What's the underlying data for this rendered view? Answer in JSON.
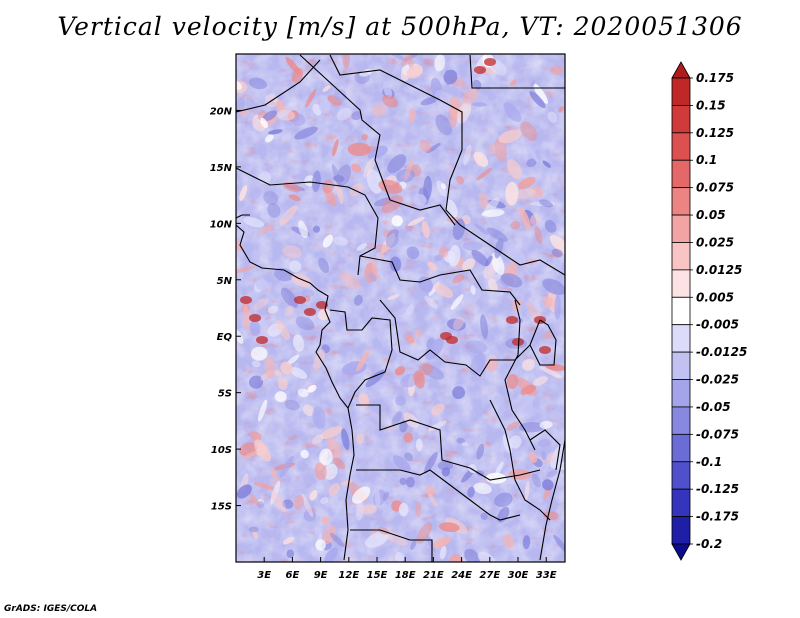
{
  "title": "Vertical velocity [m/s] at 500hPa, VT: 2020051306",
  "credit": "GrADS: IGES/COLA",
  "map": {
    "lon_range": [
      0,
      35
    ],
    "lat_range": [
      -20,
      25
    ],
    "lon_ticks": [
      "3E",
      "6E",
      "9E",
      "12E",
      "15E",
      "18E",
      "21E",
      "24E",
      "27E",
      "30E",
      "33E"
    ],
    "lat_ticks": [
      "20N",
      "15N",
      "10N",
      "5N",
      "EQ",
      "5S",
      "10S",
      "15S"
    ],
    "field": "Vertical velocity",
    "units": "m/s",
    "level": "500hPa"
  },
  "colorbar": {
    "labels": [
      "0.175",
      "0.15",
      "0.125",
      "0.1",
      "0.075",
      "0.05",
      "0.025",
      "0.0125",
      "0.005",
      "-0.005",
      "-0.0125",
      "-0.025",
      "-0.05",
      "-0.075",
      "-0.1",
      "-0.125",
      "-0.175",
      "-0.2"
    ],
    "colors": [
      "#b01c1c",
      "#c02828",
      "#d03a3a",
      "#dc5050",
      "#e46868",
      "#ec8484",
      "#f2a4a4",
      "#f8c4c4",
      "#fce2e2",
      "#ffffff",
      "#dcdcfa",
      "#c2c2f2",
      "#a4a4ea",
      "#8888e0",
      "#6c6cd6",
      "#5050cc",
      "#3434bc",
      "#1e1ea6",
      "#0c0c8c"
    ]
  }
}
